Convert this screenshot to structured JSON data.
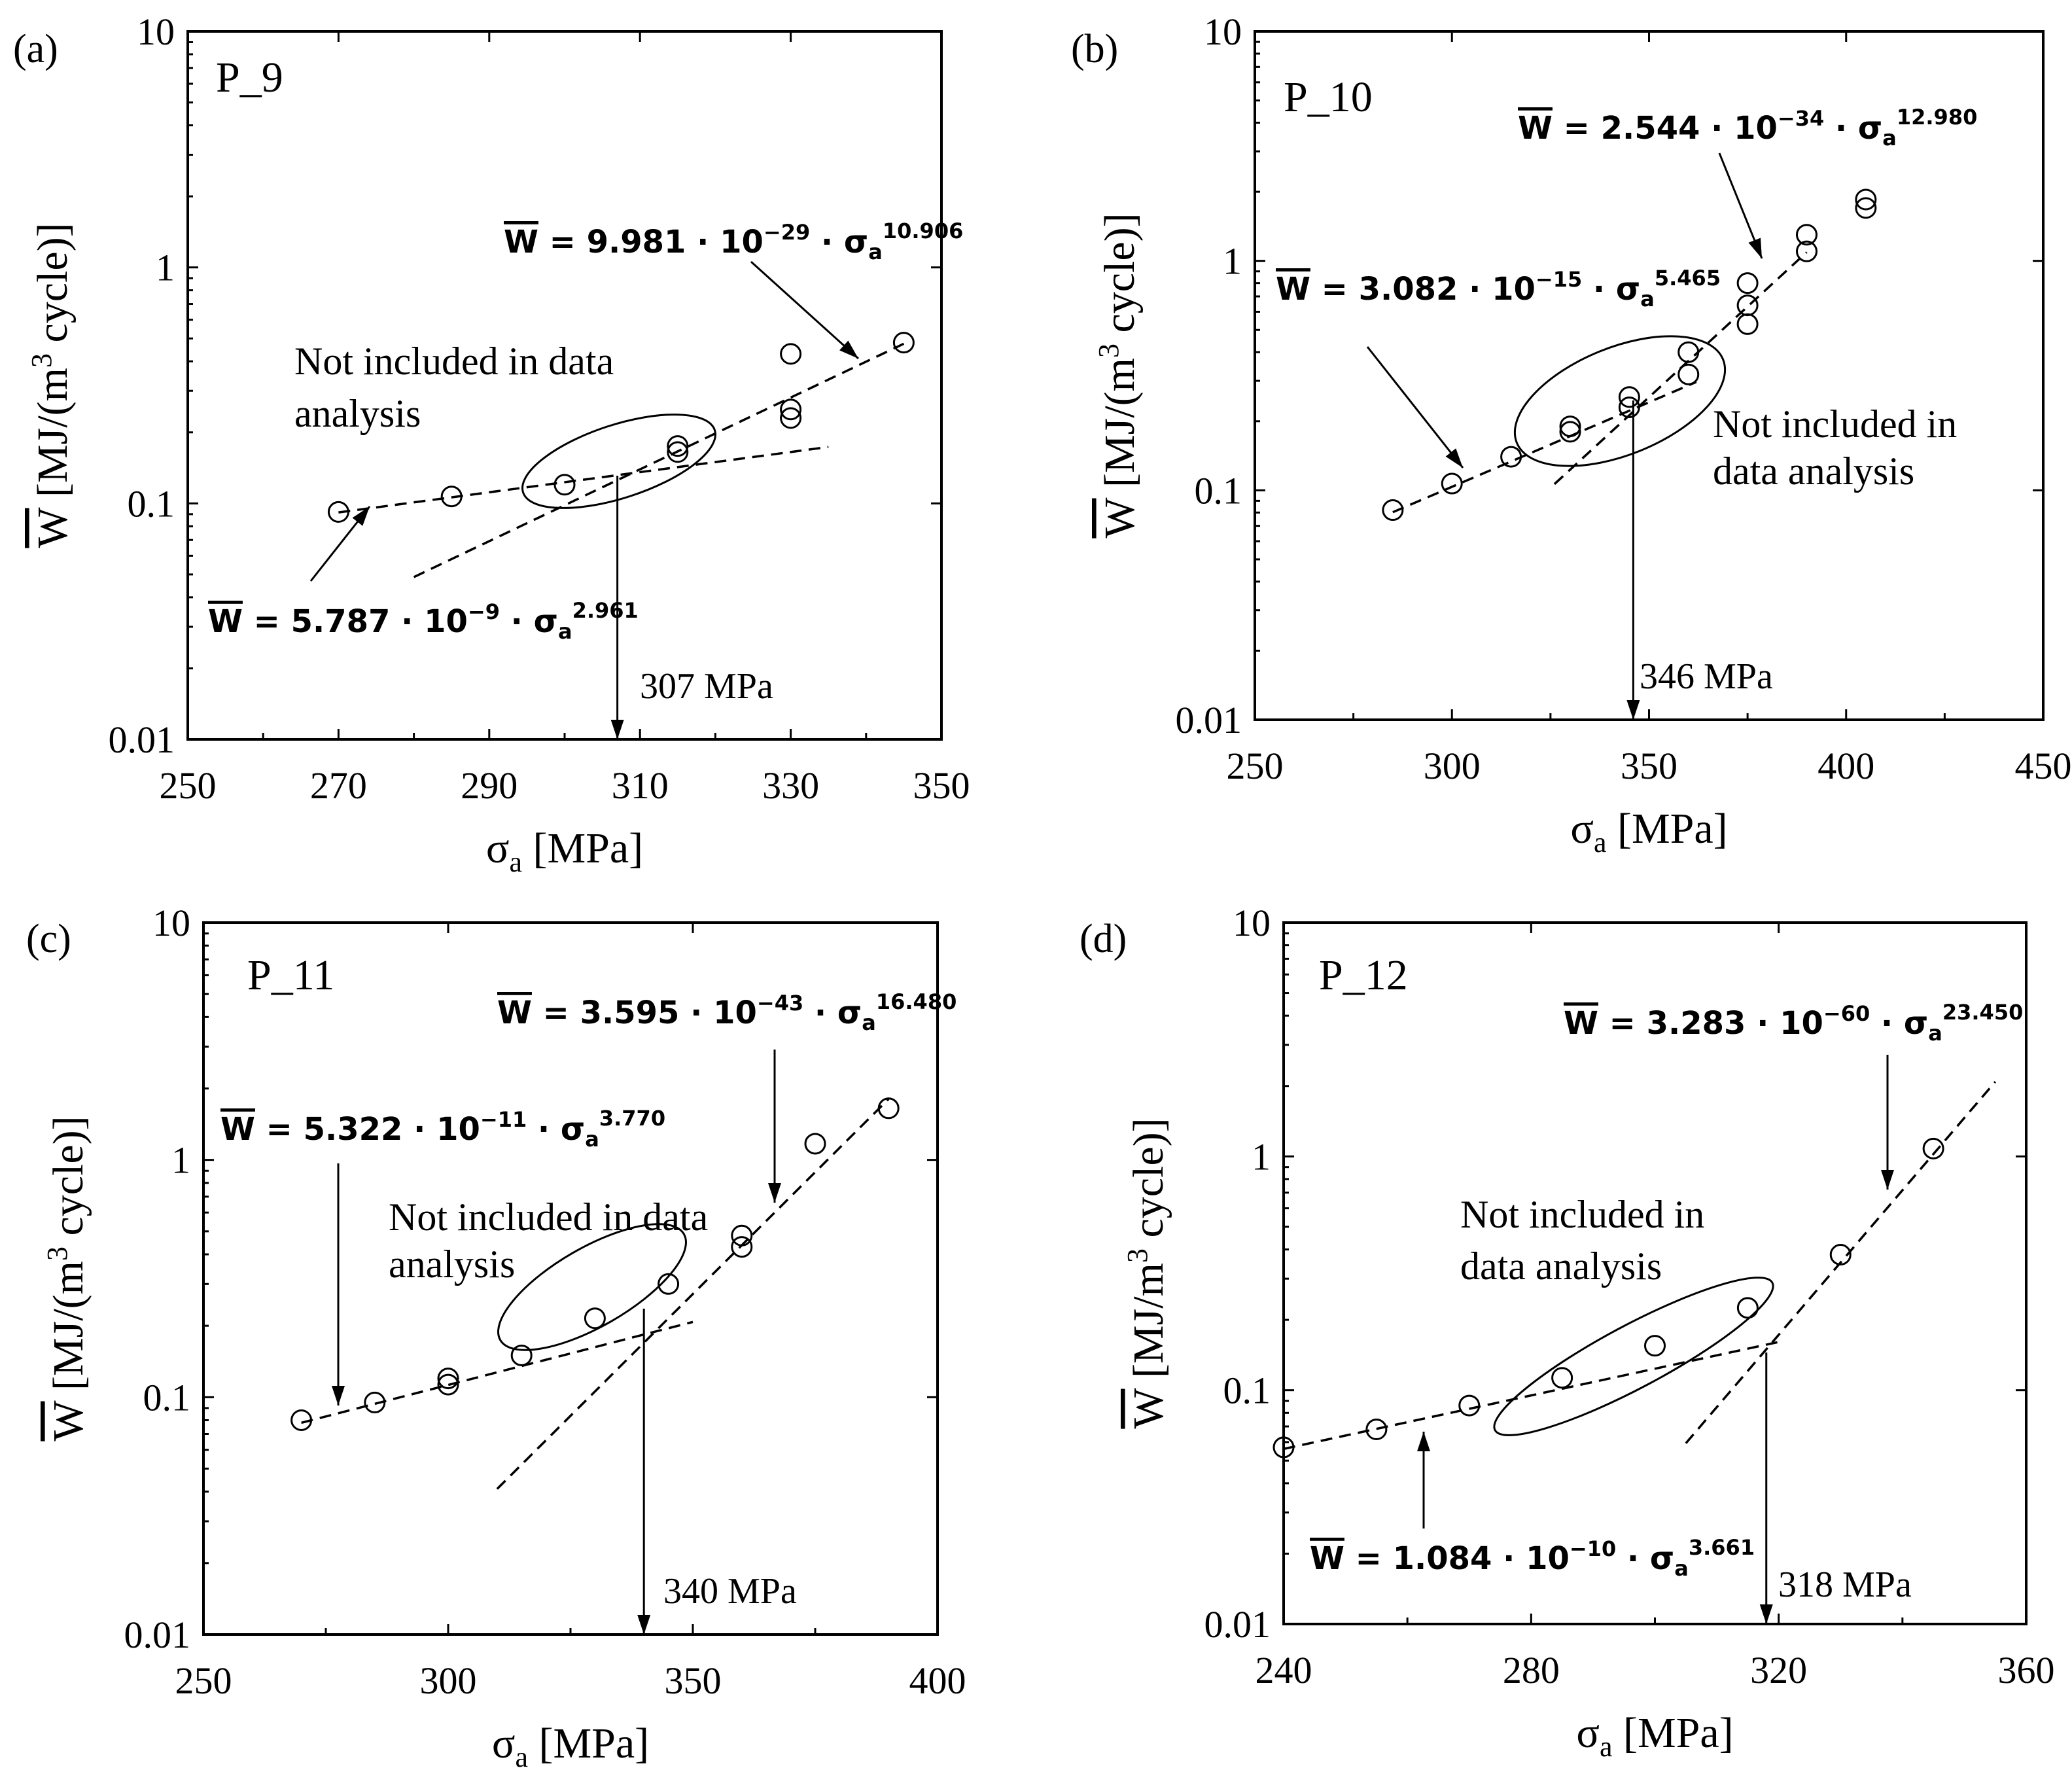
{
  "chart_data": [
    {
      "type": "scatter",
      "panel_label": "(a)",
      "specimen": "P_9",
      "xlabel_symbol": "σ",
      "xlabel_sub": "a",
      "xlabel_unit": " [MPa]",
      "ylabel_symbol": "W",
      "ylabel_pre": " [MJ/(m",
      "ylabel_sup": "3",
      "ylabel_post": " cycle)]",
      "xlim": [
        250,
        350
      ],
      "ylim": [
        0.01,
        10
      ],
      "xscale": "linear",
      "yscale": "log",
      "xticks": [
        250,
        270,
        290,
        310,
        330,
        350
      ],
      "xtick_labels": [
        "250",
        "270",
        "290",
        "310",
        "330",
        "350"
      ],
      "yticks": [
        0.01,
        0.1,
        1,
        10
      ],
      "ytick_labels": [
        "0.01",
        "0.1",
        "1",
        "10"
      ],
      "points": [
        [
          270,
          0.092
        ],
        [
          285,
          0.107
        ],
        [
          300,
          0.12
        ],
        [
          315,
          0.165
        ],
        [
          315,
          0.175
        ],
        [
          330,
          0.23
        ],
        [
          330,
          0.25
        ],
        [
          330,
          0.43
        ],
        [
          345,
          0.48
        ]
      ],
      "fits": [
        {
          "coef": 5.787e-09,
          "exp": 2.961,
          "x_range": [
            270,
            335
          ],
          "mantissa": "5.787",
          "power": "−9",
          "exponent_text": "2.961"
        },
        {
          "coef": 9.981e-29,
          "exp": 10.906,
          "x_range": [
            280,
            345
          ],
          "mantissa": "9.981",
          "power": "−29",
          "exponent_text": "10.906"
        }
      ],
      "excluded_note_line1": "Not included in data",
      "excluded_note_line2": "analysis",
      "transition_value": 307,
      "transition_label": "307 MPa"
    },
    {
      "type": "scatter",
      "panel_label": "(b)",
      "specimen": "P_10",
      "xlabel_symbol": "σ",
      "xlabel_sub": "a",
      "xlabel_unit": " [MPa]",
      "ylabel_symbol": "W",
      "ylabel_pre": " [MJ/(m",
      "ylabel_sup": "3",
      "ylabel_post": " cycle)]",
      "xlim": [
        250,
        450
      ],
      "ylim": [
        0.01,
        10
      ],
      "xscale": "linear",
      "yscale": "log",
      "xticks": [
        250,
        300,
        350,
        400,
        450
      ],
      "xtick_labels": [
        "250",
        "300",
        "350",
        "400",
        "450"
      ],
      "yticks": [
        0.01,
        0.1,
        1,
        10
      ],
      "ytick_labels": [
        "0.01",
        "0.1",
        "1",
        "10"
      ],
      "points": [
        [
          285,
          0.082
        ],
        [
          300,
          0.107
        ],
        [
          315,
          0.14
        ],
        [
          330,
          0.18
        ],
        [
          330,
          0.19
        ],
        [
          345,
          0.23
        ],
        [
          345,
          0.255
        ],
        [
          360,
          0.32
        ],
        [
          360,
          0.4
        ],
        [
          375,
          0.53
        ],
        [
          375,
          0.64
        ],
        [
          375,
          0.8
        ],
        [
          390,
          1.1
        ],
        [
          390,
          1.3
        ],
        [
          405,
          1.7
        ],
        [
          405,
          1.85
        ]
      ],
      "fits": [
        {
          "coef": 3.082e-15,
          "exp": 5.465,
          "x_range": [
            285,
            362
          ],
          "mantissa": "3.082",
          "power": "−15",
          "exponent_text": "5.465"
        },
        {
          "coef": 2.544e-34,
          "exp": 12.98,
          "x_range": [
            326,
            390
          ],
          "mantissa": "2.544",
          "power": "−34",
          "exponent_text": "12.980"
        }
      ],
      "excluded_note_line1": "Not included in",
      "excluded_note_line2": "data analysis",
      "transition_value": 346,
      "transition_label": "346 MPa"
    },
    {
      "type": "scatter",
      "panel_label": "(c)",
      "specimen": "P_11",
      "xlabel_symbol": "σ",
      "xlabel_sub": "a",
      "xlabel_unit": " [MPa]",
      "ylabel_symbol": "W",
      "ylabel_pre": " [MJ/(m",
      "ylabel_sup": "3",
      "ylabel_post": " cycle)]",
      "xlim": [
        250,
        400
      ],
      "ylim": [
        0.01,
        10
      ],
      "xscale": "linear",
      "yscale": "log",
      "xticks": [
        250,
        300,
        350,
        400
      ],
      "xtick_labels": [
        "250",
        "300",
        "350",
        "400"
      ],
      "yticks": [
        0.01,
        0.1,
        1,
        10
      ],
      "ytick_labels": [
        "0.01",
        "0.1",
        "1",
        "10"
      ],
      "points": [
        [
          270,
          0.08
        ],
        [
          285,
          0.095
        ],
        [
          300,
          0.113
        ],
        [
          300,
          0.12
        ],
        [
          315,
          0.15
        ],
        [
          330,
          0.215
        ],
        [
          345,
          0.3
        ],
        [
          360,
          0.43
        ],
        [
          360,
          0.48
        ],
        [
          375,
          1.17
        ],
        [
          390,
          1.65
        ]
      ],
      "fits": [
        {
          "coef": 5.322e-11,
          "exp": 3.77,
          "x_range": [
            270,
            350
          ],
          "mantissa": "5.322",
          "power": "−11",
          "exponent_text": "3.770"
        },
        {
          "coef": 3.595e-43,
          "exp": 16.48,
          "x_range": [
            310,
            390
          ],
          "mantissa": "3.595",
          "power": "−43",
          "exponent_text": "16.480"
        }
      ],
      "excluded_note_line1": "Not included in data",
      "excluded_note_line2": "analysis",
      "transition_value": 340,
      "transition_label": "340 MPa"
    },
    {
      "type": "scatter",
      "panel_label": "(d)",
      "specimen": "P_12",
      "xlabel_symbol": "σ",
      "xlabel_sub": "a",
      "xlabel_unit": " [MPa]",
      "ylabel_symbol": "W",
      "ylabel_pre": " [MJ/m",
      "ylabel_sup": "3",
      "ylabel_post": " cycle)]",
      "xlim": [
        240,
        360
      ],
      "ylim": [
        0.01,
        10
      ],
      "xscale": "linear",
      "yscale": "log",
      "xticks": [
        240,
        280,
        320,
        360
      ],
      "xtick_labels": [
        "240",
        "280",
        "320",
        "360"
      ],
      "yticks": [
        0.01,
        0.1,
        1,
        10
      ],
      "ytick_labels": [
        "0.01",
        "0.1",
        "1",
        "10"
      ],
      "points": [
        [
          240,
          0.057
        ],
        [
          255,
          0.068
        ],
        [
          270,
          0.086
        ],
        [
          285,
          0.113
        ],
        [
          300,
          0.155
        ],
        [
          315,
          0.225
        ],
        [
          330,
          0.38
        ],
        [
          345,
          1.08
        ]
      ],
      "fits": [
        {
          "coef": 1.084e-10,
          "exp": 3.661,
          "x_range": [
            240,
            320
          ],
          "mantissa": "1.084",
          "power": "−10",
          "exponent_text": "3.661"
        },
        {
          "coef": 3.283e-60,
          "exp": 23.45,
          "x_range": [
            305,
            355
          ],
          "mantissa": "3.283",
          "power": "−60",
          "exponent_text": "23.450"
        }
      ],
      "excluded_note_line1": "Not included in",
      "excluded_note_line2": "data analysis",
      "transition_value": 318,
      "transition_label": "318 MPa"
    }
  ]
}
